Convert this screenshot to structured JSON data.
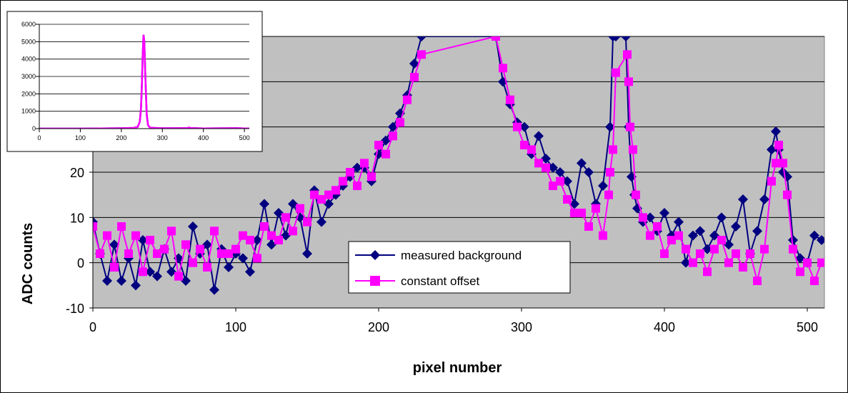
{
  "chart_data": [
    {
      "type": "line",
      "title": "",
      "xlabel": "pixel number",
      "ylabel": "ADC counts",
      "xlim": [
        0,
        512
      ],
      "ylim": [
        -10,
        50
      ],
      "x_ticks": [
        "0",
        "100",
        "200",
        "300",
        "400",
        "500"
      ],
      "y_ticks": [
        "-10",
        "0",
        "10",
        "20"
      ],
      "grid": true,
      "legend_position": "bottom-center",
      "plot_background": "#c0c0c0",
      "series": [
        {
          "name": "measured background",
          "color": "#000080",
          "marker": "diamond",
          "x": [
            0,
            5,
            10,
            15,
            20,
            25,
            30,
            35,
            40,
            45,
            50,
            55,
            60,
            65,
            70,
            75,
            80,
            85,
            90,
            95,
            100,
            105,
            110,
            115,
            120,
            125,
            130,
            135,
            140,
            145,
            150,
            155,
            160,
            165,
            170,
            175,
            180,
            185,
            190,
            195,
            200,
            205,
            210,
            215,
            220,
            225,
            230,
            282,
            287,
            292,
            297,
            302,
            307,
            312,
            317,
            322,
            327,
            332,
            337,
            342,
            347,
            352,
            357,
            362,
            364,
            366,
            373,
            375,
            377,
            379,
            381,
            385,
            390,
            395,
            400,
            405,
            410,
            415,
            420,
            425,
            430,
            435,
            440,
            445,
            450,
            455,
            460,
            465,
            470,
            475,
            478,
            480,
            483,
            486,
            490,
            495,
            500,
            505,
            510
          ],
          "y": [
            9,
            2,
            -4,
            4,
            -4,
            1,
            -5,
            5,
            -2,
            -3,
            3,
            -2,
            1,
            -4,
            8,
            2,
            4,
            -6,
            3,
            -1,
            2,
            1,
            -2,
            5,
            13,
            4,
            11,
            6,
            13,
            10,
            2,
            16,
            9,
            13,
            15,
            17,
            19,
            21,
            21,
            18,
            24,
            27,
            30,
            33,
            37,
            44,
            50,
            50,
            40,
            35,
            31,
            30,
            24,
            28,
            23,
            21,
            20,
            18,
            13,
            22,
            20,
            13,
            17,
            30,
            50,
            50,
            50,
            30,
            19,
            15,
            12,
            9,
            10,
            7,
            11,
            6,
            9,
            0,
            6,
            7,
            3,
            6,
            10,
            4,
            8,
            14,
            2,
            7,
            14,
            25,
            29,
            25,
            20,
            19,
            5,
            1,
            0,
            6,
            5
          ]
        },
        {
          "name": "constant offset",
          "color": "#ff00ff",
          "marker": "square",
          "x": [
            0,
            5,
            10,
            15,
            20,
            25,
            30,
            35,
            40,
            45,
            50,
            55,
            60,
            65,
            70,
            75,
            80,
            85,
            90,
            95,
            100,
            105,
            110,
            115,
            120,
            125,
            130,
            135,
            140,
            145,
            150,
            155,
            160,
            165,
            170,
            175,
            180,
            185,
            190,
            195,
            200,
            205,
            210,
            215,
            220,
            225,
            230,
            282,
            287,
            292,
            297,
            302,
            307,
            312,
            317,
            322,
            327,
            332,
            337,
            342,
            347,
            352,
            357,
            361,
            362,
            364,
            366,
            374,
            375,
            376,
            378,
            380,
            385,
            390,
            395,
            400,
            405,
            410,
            415,
            420,
            425,
            430,
            435,
            440,
            445,
            450,
            455,
            460,
            465,
            470,
            475,
            478,
            480,
            483,
            486,
            490,
            495,
            500,
            505,
            510
          ],
          "y": [
            8,
            2,
            6,
            -1,
            8,
            2,
            6,
            -2,
            5,
            2,
            3,
            7,
            -3,
            4,
            0,
            3,
            -1,
            7,
            2,
            2,
            3,
            6,
            5,
            1,
            8,
            6,
            5,
            10,
            7,
            12,
            9,
            15,
            14,
            15,
            16,
            18,
            20,
            17,
            22,
            19,
            26,
            24,
            28,
            31,
            36,
            41,
            46,
            50,
            43,
            36,
            30,
            26,
            25,
            22,
            21,
            17,
            18,
            14,
            11,
            11,
            8,
            12,
            6,
            15,
            20,
            25,
            42,
            46,
            40,
            30,
            25,
            15,
            10,
            6,
            8,
            2,
            5,
            6,
            3,
            0,
            2,
            -2,
            3,
            5,
            0,
            2,
            -1,
            2,
            -4,
            3,
            18,
            22,
            26,
            22,
            15,
            3,
            -2,
            0,
            -4,
            0
          ]
        }
      ]
    },
    {
      "type": "line",
      "title": "",
      "xlim": [
        0,
        512
      ],
      "ylim": [
        0,
        6000
      ],
      "x_ticks": [
        "0",
        "100",
        "200",
        "300",
        "400",
        "500"
      ],
      "y_ticks": [
        "0",
        "1000",
        "2000",
        "3000",
        "4000",
        "5000",
        "6000"
      ],
      "grid": true,
      "legend_position": "none",
      "plot_background": "#ffffff",
      "series": [
        {
          "name": "measured background",
          "color": "#000080",
          "x": [
            0,
            50,
            100,
            150,
            200,
            230,
            240,
            245,
            248,
            250,
            252,
            254,
            256,
            258,
            260,
            262,
            265,
            270,
            300,
            360,
            365,
            370,
            400,
            480,
            512
          ],
          "y": [
            0,
            0,
            0,
            10,
            20,
            40,
            100,
            400,
            1200,
            2500,
            4200,
            5400,
            5000,
            3500,
            2000,
            800,
            200,
            50,
            20,
            30,
            60,
            30,
            10,
            25,
            0
          ]
        },
        {
          "name": "constant offset",
          "color": "#ff00ff",
          "x": [
            0,
            50,
            100,
            150,
            200,
            230,
            240,
            245,
            248,
            250,
            252,
            254,
            256,
            258,
            260,
            262,
            265,
            270,
            300,
            360,
            365,
            370,
            400,
            480,
            512
          ],
          "y": [
            0,
            0,
            0,
            10,
            20,
            40,
            100,
            400,
            1200,
            2500,
            4200,
            5400,
            5000,
            3500,
            2000,
            800,
            200,
            50,
            20,
            30,
            60,
            30,
            10,
            25,
            0
          ]
        }
      ]
    }
  ]
}
